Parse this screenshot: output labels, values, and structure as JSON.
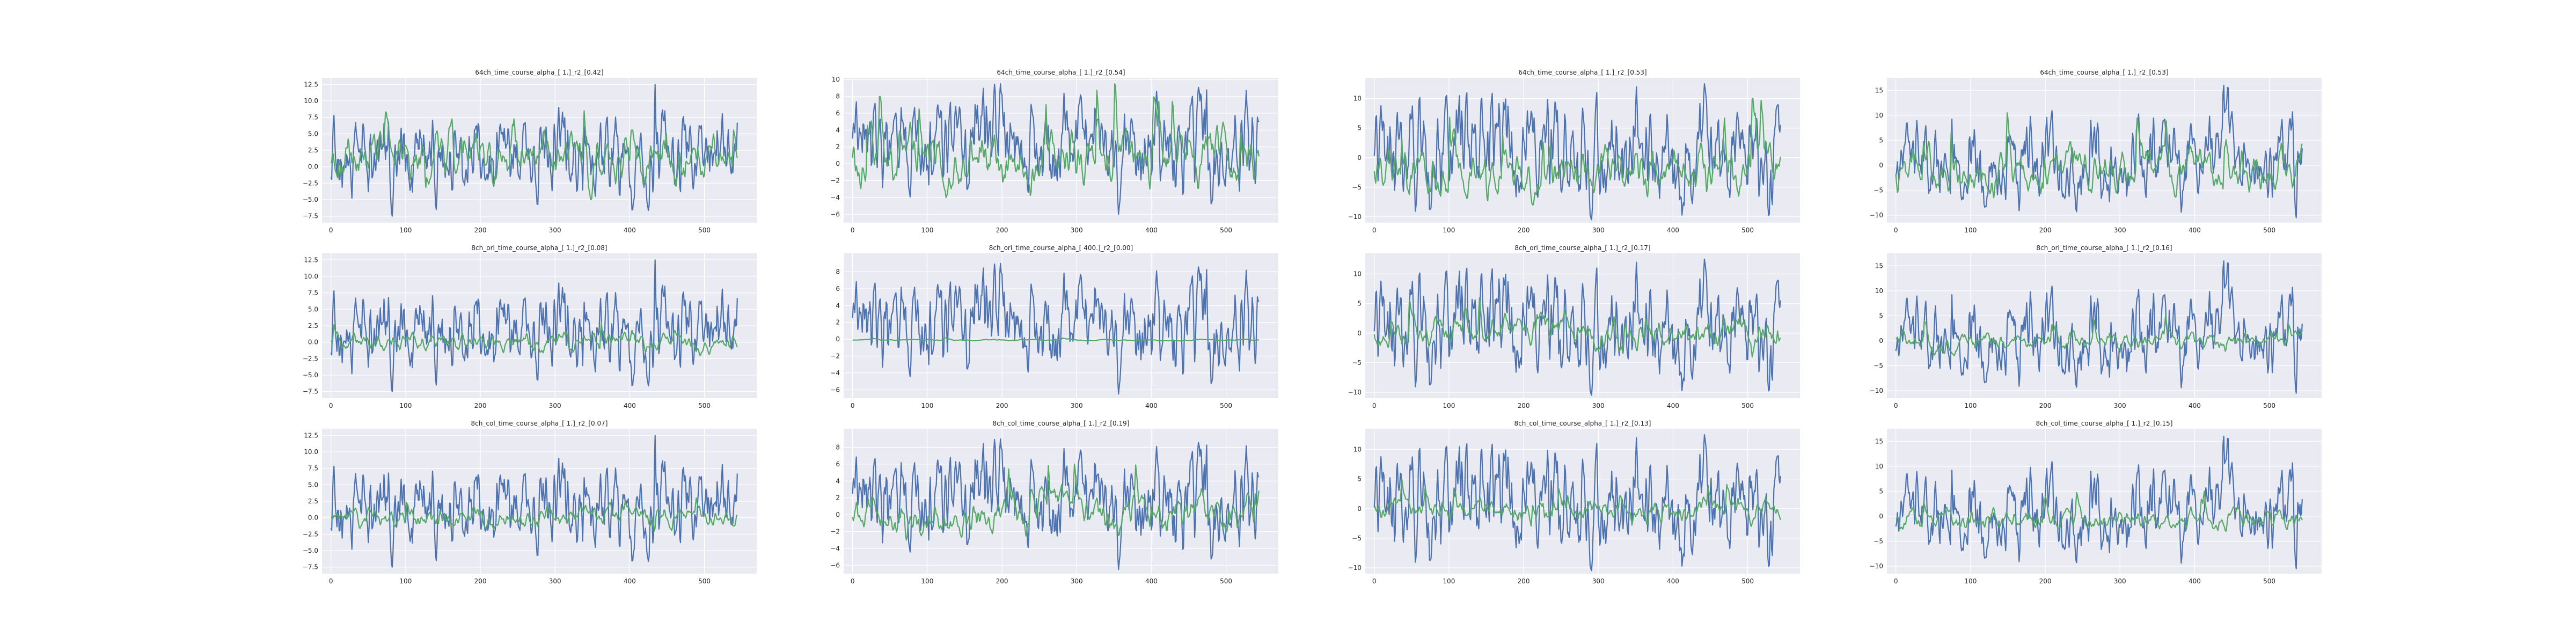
{
  "chart_data": [
    {
      "type": "line",
      "title": "64ch_time_course_alpha_[ 1.]_r2_[0.42]",
      "xlim": [
        -12,
        570
      ],
      "ylim": [
        -8.5,
        13.5
      ],
      "xticks": [
        0,
        100,
        200,
        300,
        400,
        500
      ],
      "yticks": [
        -7.5,
        -5.0,
        -2.5,
        0.0,
        2.5,
        5.0,
        7.5,
        10.0,
        12.5
      ],
      "ytick_labels": [
        "−7.5",
        "−5.0",
        "−2.5",
        "0.0",
        "2.5",
        "5.0",
        "7.5",
        "10.0",
        "12.5"
      ],
      "series": [
        {
          "color": "#4c72b0",
          "n": 545,
          "min": -7.5,
          "max": 12.5,
          "seed": 11,
          "amp": 2.8,
          "smooth": 0.55
        },
        {
          "color": "#55a868",
          "n": 545,
          "min": -5.0,
          "max": 8.5,
          "seed": 12,
          "amp": 2.0,
          "smooth": 0.8
        }
      ]
    },
    {
      "type": "line",
      "title": "64ch_time_course_alpha_[ 1.]_r2_[0.54]",
      "xlim": [
        -12,
        570
      ],
      "ylim": [
        -7,
        10.2
      ],
      "xticks": [
        0,
        100,
        200,
        300,
        400,
        500
      ],
      "yticks": [
        -6,
        -4,
        -2,
        0,
        2,
        4,
        6,
        8,
        10
      ],
      "ytick_labels": [
        "−6",
        "−4",
        "−2",
        "0",
        "2",
        "4",
        "6",
        "8",
        "10"
      ],
      "series": [
        {
          "color": "#4c72b0",
          "n": 545,
          "min": -6.0,
          "max": 9.5,
          "seed": 21,
          "amp": 2.5,
          "smooth": 0.55
        },
        {
          "color": "#55a868",
          "n": 545,
          "min": -4.0,
          "max": 9.5,
          "seed": 22,
          "amp": 2.3,
          "smooth": 0.8
        }
      ]
    },
    {
      "type": "line",
      "title": "64ch_time_course_alpha_[ 1.]_r2_[0.53]",
      "xlim": [
        -12,
        570
      ],
      "ylim": [
        -11,
        13.5
      ],
      "xticks": [
        0,
        100,
        200,
        300,
        400,
        500
      ],
      "yticks": [
        -10,
        -5,
        0,
        5,
        10
      ],
      "ytick_labels": [
        "−10",
        "−5",
        "0",
        "5",
        "10"
      ],
      "series": [
        {
          "color": "#4c72b0",
          "n": 545,
          "min": -10.5,
          "max": 12.5,
          "seed": 31,
          "amp": 3.0,
          "smooth": 0.55
        },
        {
          "color": "#55a868",
          "n": 545,
          "min": -8.0,
          "max": 10.0,
          "seed": 32,
          "amp": 2.6,
          "smooth": 0.8
        }
      ]
    },
    {
      "type": "line",
      "title": "64ch_time_course_alpha_[ 1.]_r2_[0.53]",
      "xlim": [
        -12,
        570
      ],
      "ylim": [
        -11.5,
        17.5
      ],
      "xticks": [
        0,
        100,
        200,
        300,
        400,
        500
      ],
      "yticks": [
        -10,
        -5,
        0,
        5,
        10,
        15
      ],
      "ytick_labels": [
        "−10",
        "−5",
        "0",
        "5",
        "10",
        "15"
      ],
      "series": [
        {
          "color": "#4c72b0",
          "n": 545,
          "min": -10.5,
          "max": 16.0,
          "seed": 41,
          "amp": 3.4,
          "smooth": 0.55
        },
        {
          "color": "#55a868",
          "n": 545,
          "min": -6.5,
          "max": 10.5,
          "seed": 42,
          "amp": 2.6,
          "smooth": 0.8
        }
      ]
    },
    {
      "type": "line",
      "title": "8ch_ori_time_course_alpha_[ 1.]_r2_[0.08]",
      "xlim": [
        -12,
        570
      ],
      "ylim": [
        -8.5,
        13.5
      ],
      "xticks": [
        0,
        100,
        200,
        300,
        400,
        500
      ],
      "yticks": [
        -7.5,
        -5.0,
        -2.5,
        0.0,
        2.5,
        5.0,
        7.5,
        10.0,
        12.5
      ],
      "ytick_labels": [
        "−7.5",
        "−5.0",
        "−2.5",
        "0.0",
        "2.5",
        "5.0",
        "7.5",
        "10.0",
        "12.5"
      ],
      "series": [
        {
          "color": "#4c72b0",
          "n": 545,
          "min": -7.5,
          "max": 12.5,
          "seed": 11,
          "amp": 2.8,
          "smooth": 0.55
        },
        {
          "color": "#55a868",
          "n": 545,
          "min": -2.0,
          "max": 3.0,
          "seed": 52,
          "amp": 0.8,
          "smooth": 0.8
        }
      ]
    },
    {
      "type": "line",
      "title": "8ch_ori_time_course_alpha_[ 400.]_r2_[0.00]",
      "xlim": [
        -12,
        570
      ],
      "ylim": [
        -7,
        10.2
      ],
      "xticks": [
        0,
        100,
        200,
        300,
        400,
        500
      ],
      "yticks": [
        -6,
        -4,
        -2,
        0,
        2,
        4,
        6,
        8
      ],
      "ytick_labels": [
        "−6",
        "−4",
        "−2",
        "0",
        "2",
        "4",
        "6",
        "8"
      ],
      "series": [
        {
          "color": "#4c72b0",
          "n": 545,
          "min": -6.5,
          "max": 9.0,
          "seed": 21,
          "amp": 2.5,
          "smooth": 0.55
        },
        {
          "color": "#55a868",
          "n": 545,
          "min": -0.2,
          "max": 0.2,
          "seed": 62,
          "amp": 0.05,
          "smooth": 0.9
        }
      ]
    },
    {
      "type": "line",
      "title": "8ch_ori_time_course_alpha_[ 1.]_r2_[0.17]",
      "xlim": [
        -12,
        570
      ],
      "ylim": [
        -11,
        13.5
      ],
      "xticks": [
        0,
        100,
        200,
        300,
        400,
        500
      ],
      "yticks": [
        -10,
        -5,
        0,
        5,
        10
      ],
      "ytick_labels": [
        "−10",
        "−5",
        "0",
        "5",
        "10"
      ],
      "series": [
        {
          "color": "#4c72b0",
          "n": 545,
          "min": -10.5,
          "max": 12.5,
          "seed": 31,
          "amp": 3.0,
          "smooth": 0.55
        },
        {
          "color": "#55a868",
          "n": 545,
          "min": -4.0,
          "max": 6.0,
          "seed": 72,
          "amp": 1.6,
          "smooth": 0.8
        }
      ]
    },
    {
      "type": "line",
      "title": "8ch_ori_time_course_alpha_[ 1.]_r2_[0.16]",
      "xlim": [
        -12,
        570
      ],
      "ylim": [
        -11.5,
        17.5
      ],
      "xticks": [
        0,
        100,
        200,
        300,
        400,
        500
      ],
      "yticks": [
        -10,
        -5,
        0,
        5,
        10,
        15
      ],
      "ytick_labels": [
        "−10",
        "−5",
        "0",
        "5",
        "10",
        "15"
      ],
      "series": [
        {
          "color": "#4c72b0",
          "n": 545,
          "min": -10.5,
          "max": 16.0,
          "seed": 41,
          "amp": 3.4,
          "smooth": 0.55
        },
        {
          "color": "#55a868",
          "n": 545,
          "min": -3.0,
          "max": 5.0,
          "seed": 82,
          "amp": 1.3,
          "smooth": 0.8
        }
      ]
    },
    {
      "type": "line",
      "title": "8ch_col_time_course_alpha_[ 1.]_r2_[0.07]",
      "xlim": [
        -12,
        570
      ],
      "ylim": [
        -8.5,
        13.5
      ],
      "xticks": [
        0,
        100,
        200,
        300,
        400,
        500
      ],
      "yticks": [
        -7.5,
        -5.0,
        -2.5,
        0.0,
        2.5,
        5.0,
        7.5,
        10.0,
        12.5
      ],
      "ytick_labels": [
        "−7.5",
        "−5.0",
        "−2.5",
        "0.0",
        "2.5",
        "5.0",
        "7.5",
        "10.0",
        "12.5"
      ],
      "series": [
        {
          "color": "#4c72b0",
          "n": 545,
          "min": -7.5,
          "max": 12.5,
          "seed": 11,
          "amp": 2.8,
          "smooth": 0.55
        },
        {
          "color": "#55a868",
          "n": 545,
          "min": -2.0,
          "max": 3.0,
          "seed": 92,
          "amp": 0.8,
          "smooth": 0.8
        }
      ]
    },
    {
      "type": "line",
      "title": "8ch_col_time_course_alpha_[ 1.]_r2_[0.19]",
      "xlim": [
        -12,
        570
      ],
      "ylim": [
        -7,
        10.2
      ],
      "xticks": [
        0,
        100,
        200,
        300,
        400,
        500
      ],
      "yticks": [
        -6,
        -4,
        -2,
        0,
        2,
        4,
        6,
        8
      ],
      "ytick_labels": [
        "−6",
        "−4",
        "−2",
        "0",
        "2",
        "4",
        "6",
        "8"
      ],
      "series": [
        {
          "color": "#4c72b0",
          "n": 545,
          "min": -6.5,
          "max": 9.0,
          "seed": 21,
          "amp": 2.5,
          "smooth": 0.55
        },
        {
          "color": "#55a868",
          "n": 545,
          "min": -3.0,
          "max": 6.0,
          "seed": 102,
          "amp": 1.5,
          "smooth": 0.8
        }
      ]
    },
    {
      "type": "line",
      "title": "8ch_col_time_course_alpha_[ 1.]_r2_[0.13]",
      "xlim": [
        -12,
        570
      ],
      "ylim": [
        -11,
        13.5
      ],
      "xticks": [
        0,
        100,
        200,
        300,
        400,
        500
      ],
      "yticks": [
        -10,
        -5,
        0,
        5,
        10
      ],
      "ytick_labels": [
        "−10",
        "−5",
        "0",
        "5",
        "10"
      ],
      "series": [
        {
          "color": "#4c72b0",
          "n": 545,
          "min": -10.5,
          "max": 12.5,
          "seed": 31,
          "amp": 3.0,
          "smooth": 0.55
        },
        {
          "color": "#55a868",
          "n": 545,
          "min": -3.0,
          "max": 5.0,
          "seed": 112,
          "amp": 1.3,
          "smooth": 0.8
        }
      ]
    },
    {
      "type": "line",
      "title": "8ch_col_time_course_alpha_[ 1.]_r2_[0.15]",
      "xlim": [
        -12,
        570
      ],
      "ylim": [
        -11.5,
        17.5
      ],
      "xticks": [
        0,
        100,
        200,
        300,
        400,
        500
      ],
      "yticks": [
        -10,
        -5,
        0,
        5,
        10,
        15
      ],
      "ytick_labels": [
        "−10",
        "−5",
        "0",
        "5",
        "10",
        "15"
      ],
      "series": [
        {
          "color": "#4c72b0",
          "n": 545,
          "min": -10.5,
          "max": 16.0,
          "seed": 41,
          "amp": 3.4,
          "smooth": 0.55
        },
        {
          "color": "#55a868",
          "n": 545,
          "min": -3.0,
          "max": 5.0,
          "seed": 122,
          "amp": 1.3,
          "smooth": 0.8
        }
      ]
    }
  ],
  "style": {
    "axes_face": "#eaeaf2",
    "grid": "#ffffff",
    "text": "#262626"
  }
}
